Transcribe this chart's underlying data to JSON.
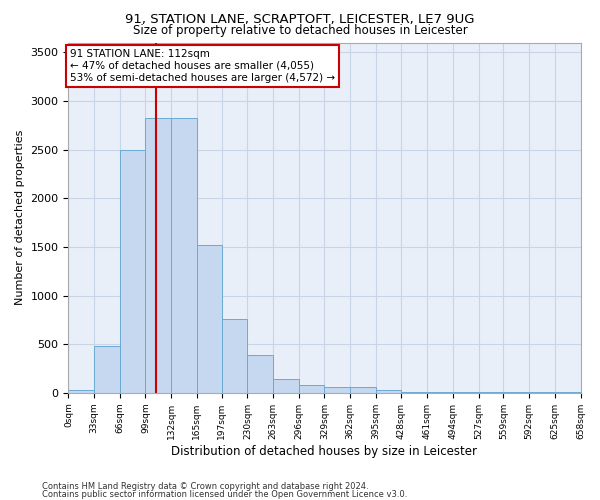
{
  "title1": "91, STATION LANE, SCRAPTOFT, LEICESTER, LE7 9UG",
  "title2": "Size of property relative to detached houses in Leicester",
  "xlabel": "Distribution of detached houses by size in Leicester",
  "ylabel": "Number of detached properties",
  "bar_edges": [
    0,
    33,
    66,
    99,
    132,
    165,
    197,
    230,
    263,
    296,
    329,
    362,
    395,
    428,
    461,
    494,
    527,
    559,
    592,
    625,
    658
  ],
  "bar_heights": [
    30,
    480,
    2500,
    2820,
    2820,
    1520,
    760,
    390,
    145,
    80,
    60,
    60,
    30,
    5,
    5,
    5,
    5,
    5,
    5,
    5
  ],
  "bar_color": "#c5d8f0",
  "bar_edge_color": "#6aaad4",
  "grid_color": "#c8d4e8",
  "bg_color": "#e8eff8",
  "property_size": 112,
  "vline_color": "#cc0000",
  "annotation_title": "91 STATION LANE: 112sqm",
  "annotation_line1": "← 47% of detached houses are smaller (4,055)",
  "annotation_line2": "53% of semi-detached houses are larger (4,572) →",
  "annotation_box_color": "#ffffff",
  "annotation_border_color": "#cc0000",
  "ylim": [
    0,
    3600
  ],
  "yticks": [
    0,
    500,
    1000,
    1500,
    2000,
    2500,
    3000,
    3500
  ],
  "footer1": "Contains HM Land Registry data © Crown copyright and database right 2024.",
  "footer2": "Contains public sector information licensed under the Open Government Licence v3.0."
}
